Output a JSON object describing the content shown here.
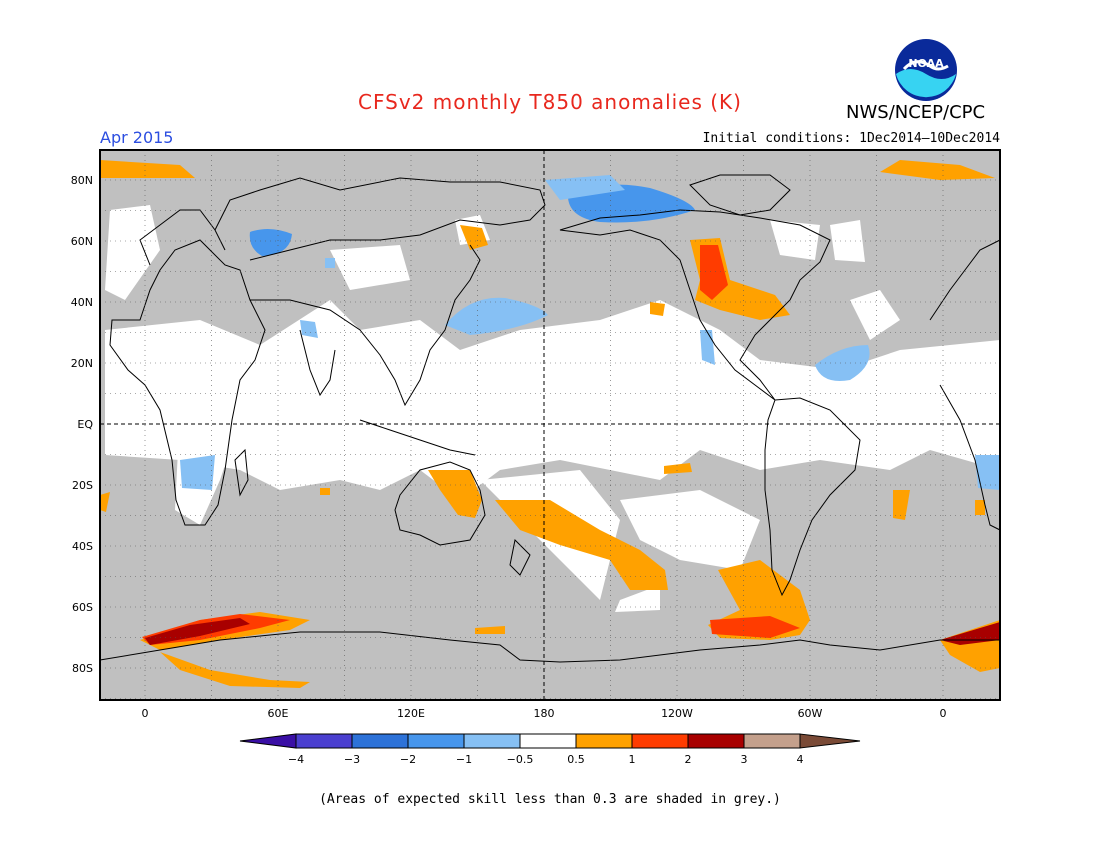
{
  "header": {
    "title": "CFSv2 monthly T850 anomalies (K)",
    "agency": "NWS/NCEP/CPC",
    "logo_text": "NOAA",
    "valid_month": "Apr 2015",
    "initial_conditions": "Initial conditions: 1Dec2014–10Dec2014"
  },
  "axes": {
    "lat_labels": [
      "80N",
      "60N",
      "40N",
      "20N",
      "EQ",
      "20S",
      "40S",
      "60S",
      "80S"
    ],
    "lon_labels": [
      "0",
      "60E",
      "120E",
      "180",
      "120W",
      "60W",
      "0"
    ]
  },
  "colorbar": {
    "labels": [
      "−4",
      "−3",
      "−2",
      "−1",
      "−0.5",
      "0.5",
      "1",
      "2",
      "3",
      "4"
    ],
    "colors": [
      "#3a0fa5",
      "#4a3fcf",
      "#2d72d8",
      "#4796ec",
      "#86c0f4",
      "#ffffff",
      "#ffa100",
      "#ff3c00",
      "#a80000",
      "#c4a08c",
      "#7a4a36"
    ]
  },
  "legend_note": "(Areas of expected skill less than 0.3 are shaded in grey.)",
  "colors": {
    "title": "#e8281e",
    "month": "#2c4ee0",
    "low_skill": "#c0c0c0"
  }
}
